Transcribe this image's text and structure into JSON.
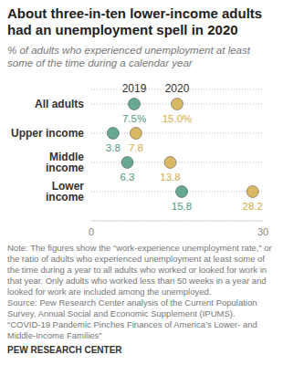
{
  "chart_data": {
    "type": "dot",
    "title": "About three-in-ten lower-income adults had an unemployment spell in 2020",
    "subtitle": "% of adults who experienced unemployment at least some of the time during a calendar year",
    "categories": [
      "All adults",
      "Upper income",
      "Middle income",
      "Lower income"
    ],
    "series": [
      {
        "name": "2019",
        "color": "#4e9a82",
        "values": [
          7.5,
          3.8,
          6.3,
          15.8
        ],
        "value_labels": [
          "7.5%",
          "3.8",
          "6.3",
          "15.8"
        ]
      },
      {
        "name": "2020",
        "color": "#d4ad4a",
        "values": [
          15.0,
          7.8,
          13.8,
          28.2
        ],
        "value_labels": [
          "15.0%",
          "7.8",
          "13.8",
          "28.2"
        ]
      }
    ],
    "xlim": [
      0,
      30
    ],
    "xticks": [
      0,
      30
    ],
    "orientation": "horizontal",
    "grid": true,
    "data_labels": true,
    "legend": "top",
    "note": "Note: The figures show the “work-experience unemployment rate,” or the ratio of adults who experienced unemployment at least some of the time during a year to all adults who worked or looked for work in that year. Only adults who worked less than 50 weeks in a year and looked for work are included among the unemployed.",
    "source": "Source: Pew Research Center analysis of the Current Population Survey, Annual Social and Economic Supplement (IPUMS).",
    "report": "“COVID-19 Pandemic Pinches Finances of America’s Lower- and Middle-Income Families”",
    "credit": "PEW RESEARCH CENTER"
  }
}
